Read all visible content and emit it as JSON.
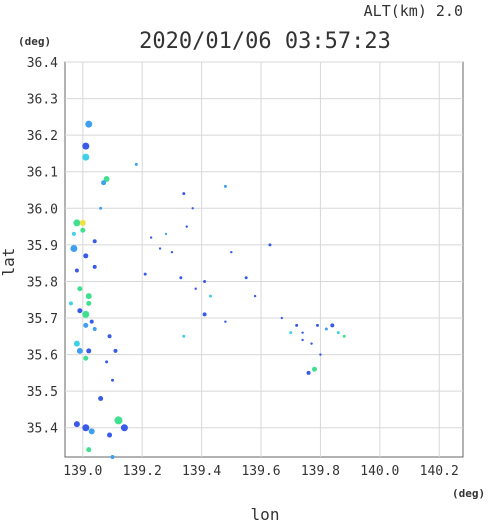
{
  "chart_data": {
    "type": "scatter",
    "title": "2020/01/06 03:57:23",
    "subtitle": "ALT(km) 2.0",
    "xlabel": "lon",
    "ylabel": "lat",
    "xunit": "(deg)",
    "yunit": "(deg)",
    "xlim": [
      138.94,
      140.28
    ],
    "ylim": [
      35.32,
      36.4
    ],
    "xticks": [
      "139.0",
      "139.2",
      "139.4",
      "139.6",
      "139.8",
      "140.0",
      "140.2"
    ],
    "yticks": [
      "35.4",
      "35.5",
      "35.6",
      "35.7",
      "35.8",
      "35.9",
      "36.0",
      "36.1",
      "36.2",
      "36.3",
      "36.4"
    ],
    "grid": true,
    "colors": {
      "blue": "#3a5ae8",
      "lightblue": "#40a0f0",
      "cyan": "#40d0e8",
      "green": "#40e090",
      "yellow": "#f0e040"
    },
    "points": [
      {
        "x": 139.02,
        "y": 36.23,
        "c": "lightblue",
        "s": 3.5
      },
      {
        "x": 139.01,
        "y": 36.17,
        "c": "blue",
        "s": 3.5
      },
      {
        "x": 139.01,
        "y": 36.14,
        "c": "cyan",
        "s": 3.5
      },
      {
        "x": 139.08,
        "y": 36.08,
        "c": "green",
        "s": 3
      },
      {
        "x": 139.07,
        "y": 36.07,
        "c": "lightblue",
        "s": 2.5
      },
      {
        "x": 139.18,
        "y": 36.12,
        "c": "lightblue",
        "s": 1.5
      },
      {
        "x": 139.06,
        "y": 36.0,
        "c": "lightblue",
        "s": 1.5
      },
      {
        "x": 138.98,
        "y": 35.96,
        "c": "green",
        "s": 3.5
      },
      {
        "x": 139.0,
        "y": 35.96,
        "c": "yellow",
        "s": 3
      },
      {
        "x": 139.0,
        "y": 35.94,
        "c": "green",
        "s": 2.5
      },
      {
        "x": 138.97,
        "y": 35.93,
        "c": "cyan",
        "s": 2
      },
      {
        "x": 138.97,
        "y": 35.89,
        "c": "lightblue",
        "s": 3.5
      },
      {
        "x": 139.04,
        "y": 35.91,
        "c": "blue",
        "s": 2
      },
      {
        "x": 139.01,
        "y": 35.87,
        "c": "blue",
        "s": 2.5
      },
      {
        "x": 139.04,
        "y": 35.84,
        "c": "blue",
        "s": 2
      },
      {
        "x": 138.98,
        "y": 35.83,
        "c": "blue",
        "s": 2
      },
      {
        "x": 138.99,
        "y": 35.78,
        "c": "green",
        "s": 2.5
      },
      {
        "x": 139.02,
        "y": 35.76,
        "c": "green",
        "s": 3
      },
      {
        "x": 139.02,
        "y": 35.74,
        "c": "green",
        "s": 2.5
      },
      {
        "x": 138.96,
        "y": 35.74,
        "c": "cyan",
        "s": 2
      },
      {
        "x": 138.99,
        "y": 35.72,
        "c": "blue",
        "s": 2.5
      },
      {
        "x": 139.01,
        "y": 35.71,
        "c": "green",
        "s": 3.5
      },
      {
        "x": 139.01,
        "y": 35.68,
        "c": "lightblue",
        "s": 2.5
      },
      {
        "x": 139.04,
        "y": 35.67,
        "c": "lightblue",
        "s": 2
      },
      {
        "x": 139.03,
        "y": 35.69,
        "c": "blue",
        "s": 2
      },
      {
        "x": 138.98,
        "y": 35.63,
        "c": "cyan",
        "s": 3
      },
      {
        "x": 138.99,
        "y": 35.61,
        "c": "lightblue",
        "s": 3
      },
      {
        "x": 139.02,
        "y": 35.61,
        "c": "blue",
        "s": 2.5
      },
      {
        "x": 139.01,
        "y": 35.59,
        "c": "green",
        "s": 2.5
      },
      {
        "x": 139.09,
        "y": 35.65,
        "c": "blue",
        "s": 2
      },
      {
        "x": 139.11,
        "y": 35.61,
        "c": "blue",
        "s": 2
      },
      {
        "x": 139.08,
        "y": 35.58,
        "c": "blue",
        "s": 1.5
      },
      {
        "x": 139.1,
        "y": 35.53,
        "c": "blue",
        "s": 1.5
      },
      {
        "x": 139.06,
        "y": 35.48,
        "c": "blue",
        "s": 2.5
      },
      {
        "x": 138.98,
        "y": 35.41,
        "c": "blue",
        "s": 3
      },
      {
        "x": 139.01,
        "y": 35.4,
        "c": "blue",
        "s": 3.5
      },
      {
        "x": 139.03,
        "y": 35.39,
        "c": "lightblue",
        "s": 3
      },
      {
        "x": 139.12,
        "y": 35.42,
        "c": "green",
        "s": 4
      },
      {
        "x": 139.14,
        "y": 35.4,
        "c": "blue",
        "s": 3.5
      },
      {
        "x": 139.09,
        "y": 35.38,
        "c": "blue",
        "s": 2.5
      },
      {
        "x": 139.02,
        "y": 35.34,
        "c": "green",
        "s": 2.5
      },
      {
        "x": 139.1,
        "y": 35.32,
        "c": "lightblue",
        "s": 2
      },
      {
        "x": 139.21,
        "y": 35.82,
        "c": "blue",
        "s": 1.5
      },
      {
        "x": 139.23,
        "y": 35.92,
        "c": "blue",
        "s": 1.2
      },
      {
        "x": 139.26,
        "y": 35.89,
        "c": "blue",
        "s": 1.2
      },
      {
        "x": 139.28,
        "y": 35.93,
        "c": "lightblue",
        "s": 1.2
      },
      {
        "x": 139.3,
        "y": 35.88,
        "c": "blue",
        "s": 1.2
      },
      {
        "x": 139.33,
        "y": 35.81,
        "c": "blue",
        "s": 1.5
      },
      {
        "x": 139.34,
        "y": 36.04,
        "c": "blue",
        "s": 1.5
      },
      {
        "x": 139.37,
        "y": 36.0,
        "c": "blue",
        "s": 1.2
      },
      {
        "x": 139.35,
        "y": 35.95,
        "c": "blue",
        "s": 1.2
      },
      {
        "x": 139.41,
        "y": 35.8,
        "c": "blue",
        "s": 1.5
      },
      {
        "x": 139.43,
        "y": 35.76,
        "c": "cyan",
        "s": 1.5
      },
      {
        "x": 139.41,
        "y": 35.71,
        "c": "blue",
        "s": 2
      },
      {
        "x": 139.34,
        "y": 35.65,
        "c": "cyan",
        "s": 1.5
      },
      {
        "x": 139.48,
        "y": 36.06,
        "c": "lightblue",
        "s": 1.5
      },
      {
        "x": 139.38,
        "y": 35.78,
        "c": "blue",
        "s": 1.2
      },
      {
        "x": 139.48,
        "y": 35.69,
        "c": "blue",
        "s": 1.2
      },
      {
        "x": 139.5,
        "y": 35.88,
        "c": "blue",
        "s": 1.2
      },
      {
        "x": 139.55,
        "y": 35.81,
        "c": "blue",
        "s": 1.5
      },
      {
        "x": 139.58,
        "y": 35.76,
        "c": "blue",
        "s": 1.2
      },
      {
        "x": 139.63,
        "y": 35.9,
        "c": "blue",
        "s": 1.5
      },
      {
        "x": 139.67,
        "y": 35.7,
        "c": "blue",
        "s": 1.2
      },
      {
        "x": 139.7,
        "y": 35.66,
        "c": "cyan",
        "s": 1.5
      },
      {
        "x": 139.72,
        "y": 35.68,
        "c": "blue",
        "s": 1.5
      },
      {
        "x": 139.74,
        "y": 35.66,
        "c": "blue",
        "s": 1.2
      },
      {
        "x": 139.74,
        "y": 35.64,
        "c": "blue",
        "s": 1.2
      },
      {
        "x": 139.77,
        "y": 35.63,
        "c": "blue",
        "s": 1.2
      },
      {
        "x": 139.76,
        "y": 35.55,
        "c": "blue",
        "s": 2
      },
      {
        "x": 139.78,
        "y": 35.56,
        "c": "green",
        "s": 2.5
      },
      {
        "x": 139.79,
        "y": 35.68,
        "c": "blue",
        "s": 1.5
      },
      {
        "x": 139.82,
        "y": 35.67,
        "c": "lightblue",
        "s": 1.5
      },
      {
        "x": 139.84,
        "y": 35.68,
        "c": "blue",
        "s": 2
      },
      {
        "x": 139.86,
        "y": 35.66,
        "c": "cyan",
        "s": 1.5
      },
      {
        "x": 139.88,
        "y": 35.65,
        "c": "green",
        "s": 1.5
      },
      {
        "x": 139.8,
        "y": 35.6,
        "c": "blue",
        "s": 1.2
      }
    ]
  }
}
